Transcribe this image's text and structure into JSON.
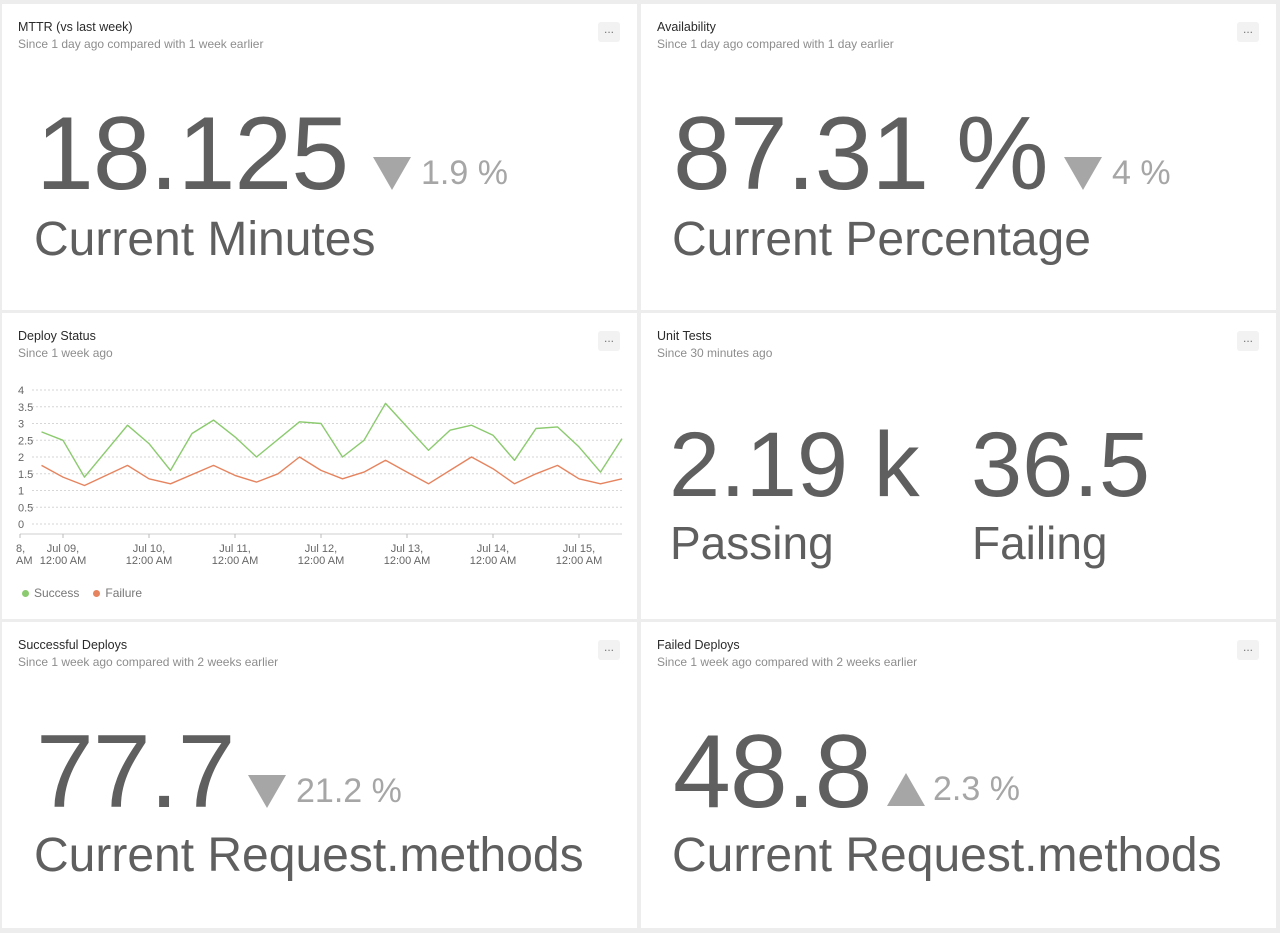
{
  "menu_label": "...",
  "mttr": {
    "title": "MTTR (vs last week)",
    "subtitle": "Since 1 day ago compared with 1 week earlier",
    "value": "18.125",
    "delta": "1.9 %",
    "direction": "down",
    "label": "Current Minutes"
  },
  "availability": {
    "title": "Availability",
    "subtitle": "Since 1 day ago compared with 1 day earlier",
    "value": "87.31 %",
    "delta": "4 %",
    "direction": "down",
    "label": "Current Percentage"
  },
  "deploy_status": {
    "title": "Deploy Status",
    "subtitle": "Since 1 week ago",
    "legend": [
      {
        "name": "Success",
        "color": "#8bca6e"
      },
      {
        "name": "Failure",
        "color": "#e5845f"
      }
    ]
  },
  "unit_tests": {
    "title": "Unit Tests",
    "subtitle": "Since 30 minutes ago",
    "passing_value": "2.19 k",
    "passing_label": "Passing",
    "failing_value": "36.5",
    "failing_label": "Failing"
  },
  "successful_deploys": {
    "title": "Successful Deploys",
    "subtitle": "Since 1 week ago compared with 2 weeks earlier",
    "value": "77.7",
    "delta": "21.2 %",
    "direction": "down",
    "label": "Current Request.methods"
  },
  "failed_deploys": {
    "title": "Failed Deploys",
    "subtitle": "Since 1 week ago compared with 2 weeks earlier",
    "value": "48.8",
    "delta": "2.3 %",
    "direction": "up",
    "label": "Current Request.methods"
  },
  "chart_data": {
    "type": "line",
    "ylim": [
      0,
      4
    ],
    "yticks": [
      "0",
      "0.5",
      "1",
      "1.5",
      "2",
      "2.5",
      "3",
      "3.5",
      "4"
    ],
    "grid": true,
    "legend_position": "bottom-left",
    "xlim": [
      -0.5,
      6.5
    ],
    "xticks": [
      {
        "x": -0.5,
        "line1": "8,",
        "line2": "AM"
      },
      {
        "x": 0,
        "line1": "Jul 09,",
        "line2": "12:00 AM"
      },
      {
        "x": 1,
        "line1": "Jul 10,",
        "line2": "12:00 AM"
      },
      {
        "x": 2,
        "line1": "Jul 11,",
        "line2": "12:00 AM"
      },
      {
        "x": 3,
        "line1": "Jul 12,",
        "line2": "12:00 AM"
      },
      {
        "x": 4,
        "line1": "Jul 13,",
        "line2": "12:00 AM"
      },
      {
        "x": 5,
        "line1": "Jul 14,",
        "line2": "12:00 AM"
      },
      {
        "x": 6,
        "line1": "Jul 15,",
        "line2": "12:00 AM"
      }
    ],
    "series": [
      {
        "name": "Success",
        "color": "#8bca6e",
        "points": [
          [
            -0.25,
            2.75
          ],
          [
            0.0,
            2.5
          ],
          [
            0.25,
            1.4
          ],
          [
            0.75,
            2.95
          ],
          [
            1.0,
            2.4
          ],
          [
            1.25,
            1.6
          ],
          [
            1.5,
            2.7
          ],
          [
            1.75,
            3.1
          ],
          [
            2.0,
            2.6
          ],
          [
            2.25,
            2.0
          ],
          [
            2.75,
            3.05
          ],
          [
            3.0,
            3.0
          ],
          [
            3.25,
            2.0
          ],
          [
            3.5,
            2.5
          ],
          [
            3.75,
            3.6
          ],
          [
            4.0,
            2.9
          ],
          [
            4.25,
            2.2
          ],
          [
            4.5,
            2.8
          ],
          [
            4.75,
            2.95
          ],
          [
            5.0,
            2.65
          ],
          [
            5.25,
            1.9
          ],
          [
            5.5,
            2.85
          ],
          [
            5.75,
            2.9
          ],
          [
            6.0,
            2.3
          ],
          [
            6.25,
            1.55
          ],
          [
            6.5,
            2.55
          ]
        ]
      },
      {
        "name": "Failure",
        "color": "#e5845f",
        "points": [
          [
            -0.25,
            1.75
          ],
          [
            0.0,
            1.4
          ],
          [
            0.25,
            1.15
          ],
          [
            0.75,
            1.75
          ],
          [
            1.0,
            1.35
          ],
          [
            1.25,
            1.2
          ],
          [
            1.75,
            1.75
          ],
          [
            2.0,
            1.45
          ],
          [
            2.25,
            1.25
          ],
          [
            2.5,
            1.5
          ],
          [
            2.75,
            2.0
          ],
          [
            3.0,
            1.6
          ],
          [
            3.25,
            1.35
          ],
          [
            3.5,
            1.55
          ],
          [
            3.75,
            1.9
          ],
          [
            4.0,
            1.55
          ],
          [
            4.25,
            1.2
          ],
          [
            4.5,
            1.6
          ],
          [
            4.75,
            2.0
          ],
          [
            5.0,
            1.65
          ],
          [
            5.25,
            1.2
          ],
          [
            5.5,
            1.5
          ],
          [
            5.75,
            1.75
          ],
          [
            6.0,
            1.35
          ],
          [
            6.25,
            1.2
          ],
          [
            6.5,
            1.35
          ]
        ]
      }
    ]
  }
}
